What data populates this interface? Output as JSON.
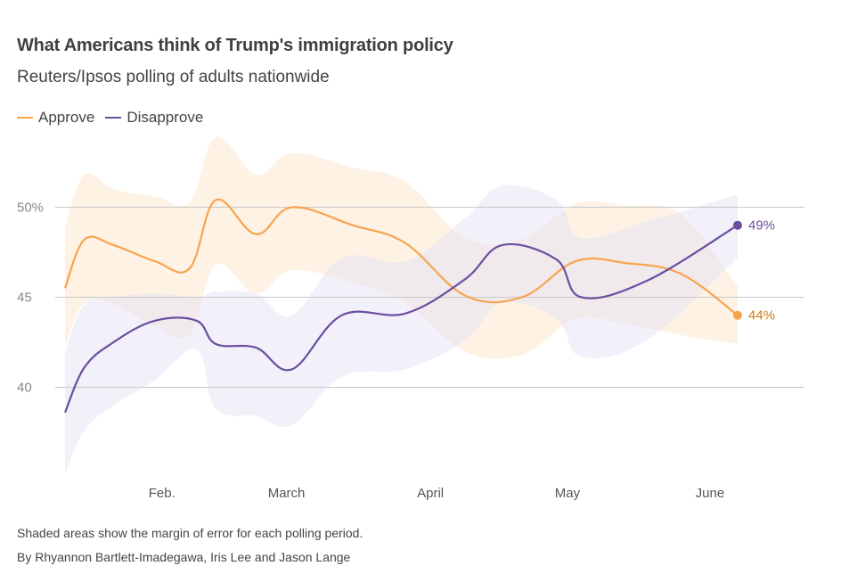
{
  "chart_data": {
    "type": "line",
    "title": "What Americans think of Trump's immigration policy",
    "subtitle": "Reuters/Ipsos polling of adults nationwide",
    "legend_position": "top-left",
    "grid": true,
    "y_ticks": [
      {
        "value": 50,
        "label": "50%"
      },
      {
        "value": 45,
        "label": "45"
      },
      {
        "value": 40,
        "label": "40"
      }
    ],
    "x_ticks": [
      {
        "value": 0.7,
        "label": "Feb."
      },
      {
        "value": 1.6,
        "label": "March"
      },
      {
        "value": 2.64,
        "label": "April"
      },
      {
        "value": 3.63,
        "label": "May"
      },
      {
        "value": 4.66,
        "label": "June"
      }
    ],
    "xlim": [
      0,
      5.1
    ],
    "ylim": [
      35,
      52
    ],
    "series": [
      {
        "name": "Approve",
        "color": "#f7a44f",
        "band_color": "#fbe2c3",
        "end_label": "44%",
        "points": [
          {
            "x": 0.0,
            "y": 45.5,
            "lo": 42.3,
            "hi": 48.9
          },
          {
            "x": 0.14,
            "y": 48.2,
            "lo": 44.7,
            "hi": 51.8
          },
          {
            "x": 0.35,
            "y": 47.9,
            "lo": 44.6,
            "hi": 51.0
          },
          {
            "x": 0.65,
            "y": 47.0,
            "lo": 43.4,
            "hi": 50.6
          },
          {
            "x": 0.9,
            "y": 46.6,
            "lo": 42.9,
            "hi": 50.3
          },
          {
            "x": 1.09,
            "y": 50.4,
            "lo": 46.8,
            "hi": 53.9
          },
          {
            "x": 1.38,
            "y": 48.5,
            "lo": 45.2,
            "hi": 51.8
          },
          {
            "x": 1.64,
            "y": 50.0,
            "lo": 46.5,
            "hi": 53.0
          },
          {
            "x": 2.08,
            "y": 49.0,
            "lo": 45.8,
            "hi": 52.2
          },
          {
            "x": 2.46,
            "y": 48.0,
            "lo": 44.7,
            "hi": 51.4
          },
          {
            "x": 2.89,
            "y": 45.1,
            "lo": 42.0,
            "hi": 48.3
          },
          {
            "x": 3.3,
            "y": 45.0,
            "lo": 41.8,
            "hi": 48.2
          },
          {
            "x": 3.69,
            "y": 47.0,
            "lo": 43.8,
            "hi": 50.2
          },
          {
            "x": 4.05,
            "y": 46.9,
            "lo": 43.5,
            "hi": 50.1
          },
          {
            "x": 4.45,
            "y": 46.3,
            "lo": 42.9,
            "hi": 49.6
          },
          {
            "x": 4.86,
            "y": 44.0,
            "lo": 42.4,
            "hi": 45.6
          }
        ]
      },
      {
        "name": "Disapprove",
        "color": "#6b4ea0",
        "band_color": "#e8e4f4",
        "end_label": "49%",
        "points": [
          {
            "x": 0.0,
            "y": 38.6,
            "lo": 35.2,
            "hi": 42.0
          },
          {
            "x": 0.14,
            "y": 41.1,
            "lo": 37.6,
            "hi": 44.6
          },
          {
            "x": 0.35,
            "y": 42.5,
            "lo": 39.0,
            "hi": 45.0
          },
          {
            "x": 0.65,
            "y": 43.7,
            "lo": 40.4,
            "hi": 45.2
          },
          {
            "x": 0.95,
            "y": 43.7,
            "lo": 42.1,
            "hi": 45.0
          },
          {
            "x": 1.09,
            "y": 42.4,
            "lo": 38.8,
            "hi": 45.3
          },
          {
            "x": 1.38,
            "y": 42.2,
            "lo": 38.4,
            "hi": 45.2
          },
          {
            "x": 1.64,
            "y": 41.0,
            "lo": 37.9,
            "hi": 44.0
          },
          {
            "x": 2.0,
            "y": 44.0,
            "lo": 40.6,
            "hi": 47.2
          },
          {
            "x": 2.46,
            "y": 44.1,
            "lo": 41.0,
            "hi": 47.0
          },
          {
            "x": 2.89,
            "y": 46.0,
            "lo": 42.6,
            "hi": 49.4
          },
          {
            "x": 3.16,
            "y": 47.9,
            "lo": 44.7,
            "hi": 51.2
          },
          {
            "x": 3.55,
            "y": 47.1,
            "lo": 43.8,
            "hi": 50.4
          },
          {
            "x": 3.73,
            "y": 45.0,
            "lo": 41.7,
            "hi": 48.3
          },
          {
            "x": 4.2,
            "y": 45.9,
            "lo": 42.6,
            "hi": 49.2
          },
          {
            "x": 4.86,
            "y": 49.0,
            "lo": 47.2,
            "hi": 50.7
          }
        ]
      }
    ]
  },
  "footer": {
    "note": "Shaded areas show the margin of error for each polling period.",
    "byline": "By Rhyannon Bartlett-Imadegawa, Iris Lee and Jason Lange"
  }
}
